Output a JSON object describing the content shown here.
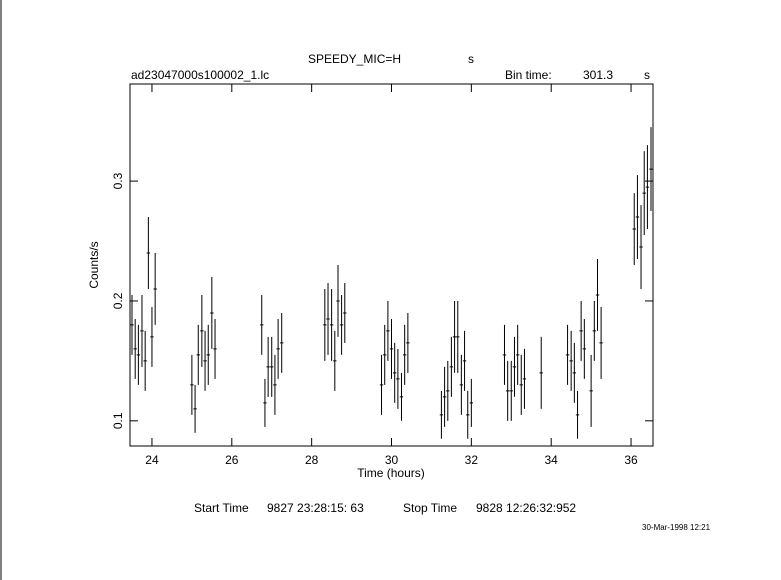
{
  "chart_data": {
    "type": "errorbar",
    "title": "SPEEDY_MIC=H",
    "title_unit": "s",
    "file_name": "ad23047000s100002_1.lc",
    "bin_time_label": "Bin time:",
    "bin_time": 301.3,
    "bin_time_unit": "s",
    "x_label": "Time (hours)",
    "y_label": "Counts/s",
    "start_label": "Start Time",
    "start_time": "9827 23:28:15: 63",
    "stop_label": "Stop Time",
    "stop_time": "9828 12:26:32:952",
    "date": "30-Mar-1998 12:21",
    "color": "#000000",
    "xlim": [
      23.45,
      36.55
    ],
    "ylim": [
      0.079,
      0.381
    ],
    "xticks": [
      24,
      26,
      28,
      30,
      32,
      34,
      36
    ],
    "yticks": [
      0.1,
      0.2,
      0.3
    ],
    "x": [
      23.5,
      23.58,
      23.66,
      23.75,
      23.83,
      23.91,
      24.0,
      24.08,
      25.0,
      25.08,
      25.16,
      25.25,
      25.33,
      25.41,
      25.5,
      25.58,
      26.75,
      26.83,
      26.91,
      27.0,
      27.08,
      27.16,
      27.25,
      28.33,
      28.41,
      28.5,
      28.58,
      28.66,
      28.75,
      28.83,
      29.75,
      29.83,
      29.91,
      30.0,
      30.08,
      30.16,
      30.25,
      30.33,
      30.41,
      31.25,
      31.33,
      31.41,
      31.5,
      31.58,
      31.66,
      31.75,
      31.83,
      31.91,
      32.0,
      32.83,
      32.91,
      33.0,
      33.08,
      33.16,
      33.25,
      33.33,
      33.75,
      34.41,
      34.5,
      34.58,
      34.66,
      34.75,
      34.83,
      35.0,
      35.08,
      35.16,
      35.25,
      36.08,
      36.16,
      36.25,
      36.33,
      36.41,
      36.5
    ],
    "values": [
      0.18,
      0.16,
      0.155,
      0.175,
      0.15,
      0.24,
      0.17,
      0.21,
      0.13,
      0.11,
      0.155,
      0.175,
      0.15,
      0.155,
      0.19,
      0.16,
      0.18,
      0.115,
      0.145,
      0.145,
      0.13,
      0.16,
      0.165,
      0.18,
      0.185,
      0.18,
      0.15,
      0.2,
      0.18,
      0.19,
      0.13,
      0.155,
      0.175,
      0.16,
      0.14,
      0.135,
      0.12,
      0.155,
      0.165,
      0.105,
      0.12,
      0.125,
      0.145,
      0.17,
      0.17,
      0.13,
      0.15,
      0.105,
      0.115,
      0.155,
      0.125,
      0.125,
      0.145,
      0.155,
      0.13,
      0.135,
      0.14,
      0.155,
      0.15,
      0.14,
      0.105,
      0.175,
      0.16,
      0.125,
      0.175,
      0.205,
      0.165,
      0.26,
      0.27,
      0.245,
      0.29,
      0.295,
      0.31
    ],
    "errors": [
      0.025,
      0.025,
      0.025,
      0.03,
      0.025,
      0.03,
      0.025,
      0.03,
      0.025,
      0.02,
      0.025,
      0.03,
      0.025,
      0.025,
      0.03,
      0.025,
      0.025,
      0.02,
      0.025,
      0.025,
      0.025,
      0.025,
      0.025,
      0.03,
      0.03,
      0.03,
      0.025,
      0.03,
      0.025,
      0.025,
      0.025,
      0.025,
      0.025,
      0.025,
      0.025,
      0.025,
      0.02,
      0.025,
      0.025,
      0.02,
      0.025,
      0.025,
      0.025,
      0.03,
      0.03,
      0.025,
      0.025,
      0.02,
      0.02,
      0.025,
      0.025,
      0.025,
      0.025,
      0.025,
      0.025,
      0.025,
      0.03,
      0.025,
      0.025,
      0.025,
      0.02,
      0.025,
      0.025,
      0.03,
      0.025,
      0.03,
      0.03,
      0.03,
      0.035,
      0.035,
      0.035,
      0.035,
      0.035
    ]
  }
}
